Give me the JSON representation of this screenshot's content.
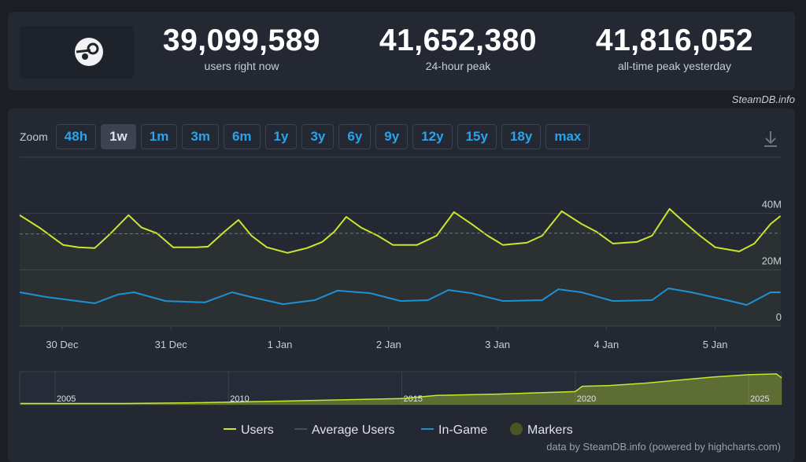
{
  "header": {
    "stats": [
      {
        "value": "39,099,589",
        "label": "users right now"
      },
      {
        "value": "41,652,380",
        "label": "24-hour peak"
      },
      {
        "value": "41,816,052",
        "label": "all-time peak yesterday"
      }
    ]
  },
  "credit_top": "SteamDB.info",
  "zoom": {
    "label": "Zoom",
    "buttons": [
      "48h",
      "1w",
      "1m",
      "3m",
      "6m",
      "1y",
      "3y",
      "6y",
      "9y",
      "12y",
      "15y",
      "18y",
      "max"
    ],
    "active": 1
  },
  "chart_data": [
    {
      "type": "line",
      "xlim": [
        -0.39,
        6.61
      ],
      "xticks": [
        {
          "value": 0,
          "label": "30 Dec"
        },
        {
          "value": 1,
          "label": "31 Dec"
        },
        {
          "value": 2,
          "label": "1 Jan"
        },
        {
          "value": 3,
          "label": "2 Jan"
        },
        {
          "value": 4,
          "label": "3 Jan"
        },
        {
          "value": 5,
          "label": "4 Jan"
        },
        {
          "value": 6,
          "label": "5 Jan"
        }
      ],
      "ylim": [
        0,
        60
      ],
      "yticks": [
        {
          "value": 0,
          "label": "0"
        },
        {
          "value": 20,
          "label": "20M"
        },
        {
          "value": 40,
          "label": "40M"
        }
      ],
      "grid": true,
      "series": [
        {
          "name": "Users",
          "color": "#c6e82e",
          "area": true,
          "x": [
            -0.39,
            -0.21,
            0.01,
            0.15,
            0.3,
            0.44,
            0.61,
            0.73,
            0.87,
            1.02,
            1.24,
            1.34,
            1.49,
            1.62,
            1.74,
            1.88,
            2.07,
            2.25,
            2.39,
            2.5,
            2.61,
            2.75,
            2.9,
            3.04,
            3.26,
            3.44,
            3.6,
            3.76,
            3.91,
            4.05,
            4.27,
            4.41,
            4.59,
            4.77,
            4.91,
            5.06,
            5.28,
            5.42,
            5.58,
            5.71,
            5.86,
            6.0,
            6.22,
            6.36,
            6.51,
            6.6
          ],
          "values": [
            39.4,
            35,
            28.8,
            28,
            27.7,
            32.7,
            39.4,
            35,
            33,
            28,
            28,
            28.2,
            33.5,
            37.7,
            32.1,
            28,
            26,
            27.7,
            29.9,
            33.5,
            38.8,
            34.9,
            32.1,
            28.8,
            28.8,
            32.1,
            40.5,
            36.3,
            32.1,
            28.8,
            29.6,
            32.1,
            40.8,
            36.3,
            33.5,
            29.3,
            29.9,
            32.1,
            41.6,
            37.1,
            32.1,
            28,
            26.5,
            29.3,
            36.3,
            39.1
          ]
        },
        {
          "name": "Average Users",
          "color": "#6c7480",
          "dash": true,
          "x": [
            -0.39,
            3.04,
            6.6
          ],
          "values": [
            32.7,
            33,
            33
          ]
        },
        {
          "name": "In-Game",
          "color": "#1e90d6",
          "x": [
            -0.39,
            -0.14,
            0.3,
            0.51,
            0.66,
            0.95,
            1.31,
            1.56,
            1.74,
            2.03,
            2.32,
            2.53,
            2.83,
            3.11,
            3.36,
            3.55,
            3.76,
            4.05,
            4.41,
            4.56,
            4.77,
            5.06,
            5.42,
            5.57,
            5.78,
            6.14,
            6.29,
            6.51,
            6.6
          ],
          "values": [
            12,
            10.3,
            8.1,
            11.2,
            12,
            8.9,
            8.4,
            12,
            10.3,
            7.8,
            9.2,
            12.6,
            11.7,
            8.9,
            9.2,
            12.8,
            11.7,
            8.9,
            9.2,
            13.1,
            12,
            8.9,
            9.2,
            13.4,
            12,
            8.9,
            7.5,
            12,
            12
          ]
        }
      ],
      "markers_label": "Markers",
      "markers_color": "#4a5424"
    },
    {
      "type": "area",
      "xlim": [
        2003.98,
        2025.95
      ],
      "ylim": [
        0,
        43
      ],
      "xticks": [
        2005,
        2010,
        2015,
        2020,
        2025
      ],
      "series": [
        {
          "name": "Users",
          "color": "#c6e82e",
          "x": [
            2004,
            2005.5,
            2007,
            2009,
            2012,
            2015,
            2016,
            2018,
            2020,
            2020.2,
            2021,
            2022,
            2023,
            2024,
            2025,
            2025.8,
            2025.95
          ],
          "values": [
            1.5,
            1.5,
            1.5,
            2.5,
            5,
            8,
            12,
            14,
            17,
            24,
            25,
            28,
            32,
            36,
            39,
            40,
            35
          ]
        }
      ]
    }
  ],
  "footer": "data by SteamDB.info (powered by highcharts.com)"
}
